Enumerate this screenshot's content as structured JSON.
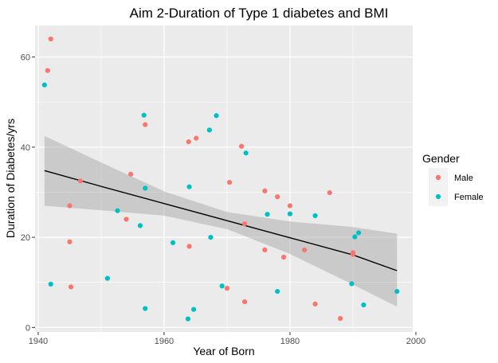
{
  "chart_data": {
    "type": "scatter",
    "title": "Aim 2-Duration of Type 1 diabetes and BMI",
    "xlabel": "Year of Born",
    "ylabel": "Duration of Diabetes/yrs",
    "xlim": [
      1939.5,
      1999.5
    ],
    "ylim": [
      -1,
      67
    ],
    "xticks": [
      1940,
      1960,
      1980,
      2000
    ],
    "yticks": [
      0,
      20,
      40,
      60
    ],
    "grid": true,
    "legend": {
      "title": "Gender",
      "position": "right",
      "entries": [
        {
          "name": "Male",
          "color": "#F8766D"
        },
        {
          "name": "Female",
          "color": "#00BFC4"
        }
      ]
    },
    "series": [
      {
        "name": "Male",
        "color": "#F8766D",
        "points": [
          [
            1941.5,
            57
          ],
          [
            1942,
            64
          ],
          [
            1945,
            27
          ],
          [
            1945,
            19
          ],
          [
            1945.2,
            9
          ],
          [
            1946.7,
            32.5
          ],
          [
            1954,
            24
          ],
          [
            1954.7,
            34
          ],
          [
            1957,
            45
          ],
          [
            1963.9,
            41.2
          ],
          [
            1964,
            18
          ],
          [
            1965.1,
            42
          ],
          [
            1970,
            8.7
          ],
          [
            1970.4,
            32.2
          ],
          [
            1972.3,
            40.2
          ],
          [
            1972.8,
            23
          ],
          [
            1972.8,
            5.7
          ],
          [
            1976,
            17.2
          ],
          [
            1976,
            30.3
          ],
          [
            1978,
            29
          ],
          [
            1979,
            15.6
          ],
          [
            1980,
            27
          ],
          [
            1982.3,
            17.2
          ],
          [
            1984,
            5.2
          ],
          [
            1986.3,
            29.9
          ],
          [
            1988,
            2
          ],
          [
            1990,
            16.6
          ],
          [
            1990,
            16.2
          ]
        ]
      },
      {
        "name": "Female",
        "color": "#00BFC4",
        "points": [
          [
            1941,
            53.8
          ],
          [
            1942,
            9.6
          ],
          [
            1951,
            10.9
          ],
          [
            1952.6,
            25.9
          ],
          [
            1956.2,
            22.6
          ],
          [
            1956.8,
            47.1
          ],
          [
            1957,
            30.9
          ],
          [
            1957,
            4.2
          ],
          [
            1961.4,
            18.8
          ],
          [
            1963.8,
            1.9
          ],
          [
            1964,
            31.2
          ],
          [
            1964.7,
            4
          ],
          [
            1967.2,
            43.8
          ],
          [
            1967.4,
            20
          ],
          [
            1968.3,
            47
          ],
          [
            1969.2,
            9.2
          ],
          [
            1973,
            38.7
          ],
          [
            1976.4,
            25.1
          ],
          [
            1978,
            8
          ],
          [
            1980,
            25.2
          ],
          [
            1984,
            24.8
          ],
          [
            1989.8,
            9.7
          ],
          [
            1990.3,
            20.1
          ],
          [
            1990.9,
            21
          ],
          [
            1991.7,
            5
          ],
          [
            1997,
            8
          ]
        ]
      }
    ],
    "trend_line": {
      "type": "linear",
      "color": "#000000",
      "band_color": "#999999",
      "x_range": [
        1941,
        1997
      ],
      "points": [
        {
          "x": 1941,
          "y": 34.8,
          "lower": 27,
          "upper": 42.5
        },
        {
          "x": 1950,
          "y": 31.3,
          "lower": 26,
          "upper": 36.6
        },
        {
          "x": 1960,
          "y": 27.5,
          "lower": 24.8,
          "upper": 30.2
        },
        {
          "x": 1970,
          "y": 23.7,
          "lower": 21.8,
          "upper": 25.6
        },
        {
          "x": 1980,
          "y": 19.9,
          "lower": 16.3,
          "upper": 23.5
        },
        {
          "x": 1990,
          "y": 16.1,
          "lower": 9.5,
          "upper": 22.3
        },
        {
          "x": 1997,
          "y": 12.6,
          "lower": 4.6,
          "upper": 20.8
        }
      ]
    }
  }
}
